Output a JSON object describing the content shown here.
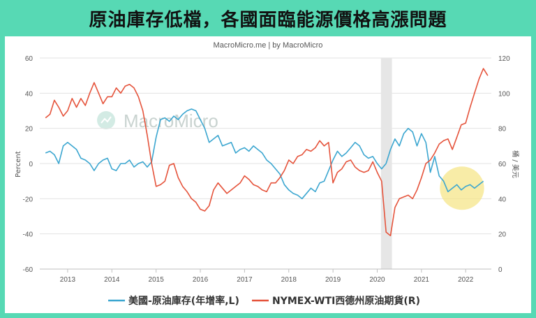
{
  "header": {
    "title": "原油庫存低檔，各國面臨能源價格高漲問題"
  },
  "credit": "MacroMicro.me | by MacroMicro",
  "watermark": "MacroMicro",
  "colors": {
    "frame": "#57d9b4",
    "inventory": "#3ba6d0",
    "wti": "#e5533b",
    "highlight": "#f6e68a",
    "shade": "#e6e6e6"
  },
  "chart_data": {
    "type": "line",
    "x_ticks": [
      "2013",
      "2014",
      "2015",
      "2016",
      "2017",
      "2018",
      "2019",
      "2020",
      "2021",
      "2022"
    ],
    "y_left": {
      "label": "Percent",
      "ticks": [
        60,
        40,
        20,
        0,
        -20,
        -40,
        -60
      ],
      "range": [
        -60,
        60
      ]
    },
    "y_right": {
      "label": "桶 / 美元",
      "ticks": [
        120,
        100,
        80,
        60,
        40,
        20,
        0
      ],
      "range": [
        0,
        120
      ]
    },
    "shaded_period": [
      "2020-02",
      "2020-05"
    ],
    "highlight_period": [
      "2021-06",
      "2022-06"
    ],
    "grid": true,
    "legend_position": "bottom",
    "series": [
      {
        "name": "美國-原油庫存(年增率,L)",
        "axis": "left",
        "points": [
          [
            2012.5,
            6
          ],
          [
            2012.6,
            7
          ],
          [
            2012.7,
            5
          ],
          [
            2012.8,
            0
          ],
          [
            2012.9,
            10
          ],
          [
            2013.0,
            12
          ],
          [
            2013.1,
            10
          ],
          [
            2013.2,
            8
          ],
          [
            2013.3,
            3
          ],
          [
            2013.4,
            2
          ],
          [
            2013.5,
            0
          ],
          [
            2013.6,
            -4
          ],
          [
            2013.7,
            0
          ],
          [
            2013.8,
            2
          ],
          [
            2013.9,
            3
          ],
          [
            2014.0,
            -3
          ],
          [
            2014.1,
            -4
          ],
          [
            2014.2,
            0
          ],
          [
            2014.3,
            0
          ],
          [
            2014.4,
            2
          ],
          [
            2014.5,
            -2
          ],
          [
            2014.6,
            0
          ],
          [
            2014.7,
            1
          ],
          [
            2014.8,
            -2
          ],
          [
            2014.9,
            1
          ],
          [
            2015.0,
            15
          ],
          [
            2015.1,
            25
          ],
          [
            2015.2,
            26
          ],
          [
            2015.3,
            24
          ],
          [
            2015.4,
            27
          ],
          [
            2015.5,
            25
          ],
          [
            2015.6,
            28
          ],
          [
            2015.7,
            30
          ],
          [
            2015.8,
            31
          ],
          [
            2015.9,
            30
          ],
          [
            2016.0,
            25
          ],
          [
            2016.1,
            20
          ],
          [
            2016.2,
            12
          ],
          [
            2016.3,
            14
          ],
          [
            2016.4,
            16
          ],
          [
            2016.5,
            10
          ],
          [
            2016.6,
            11
          ],
          [
            2016.7,
            12
          ],
          [
            2016.8,
            6
          ],
          [
            2016.9,
            8
          ],
          [
            2017.0,
            9
          ],
          [
            2017.1,
            7
          ],
          [
            2017.2,
            10
          ],
          [
            2017.3,
            8
          ],
          [
            2017.4,
            6
          ],
          [
            2017.5,
            2
          ],
          [
            2017.6,
            0
          ],
          [
            2017.7,
            -3
          ],
          [
            2017.8,
            -6
          ],
          [
            2017.9,
            -12
          ],
          [
            2018.0,
            -15
          ],
          [
            2018.1,
            -17
          ],
          [
            2018.2,
            -18
          ],
          [
            2018.3,
            -20
          ],
          [
            2018.4,
            -17
          ],
          [
            2018.5,
            -14
          ],
          [
            2018.6,
            -16
          ],
          [
            2018.7,
            -11
          ],
          [
            2018.8,
            -10
          ],
          [
            2018.9,
            -4
          ],
          [
            2019.0,
            2
          ],
          [
            2019.1,
            7
          ],
          [
            2019.2,
            4
          ],
          [
            2019.3,
            6
          ],
          [
            2019.4,
            9
          ],
          [
            2019.5,
            12
          ],
          [
            2019.6,
            10
          ],
          [
            2019.7,
            5
          ],
          [
            2019.8,
            3
          ],
          [
            2019.9,
            4
          ],
          [
            2020.0,
            0
          ],
          [
            2020.1,
            -3
          ],
          [
            2020.2,
            0
          ],
          [
            2020.3,
            8
          ],
          [
            2020.4,
            14
          ],
          [
            2020.5,
            10
          ],
          [
            2020.6,
            17
          ],
          [
            2020.7,
            20
          ],
          [
            2020.8,
            18
          ],
          [
            2020.9,
            10
          ],
          [
            2021.0,
            17
          ],
          [
            2021.1,
            12
          ],
          [
            2021.2,
            -5
          ],
          [
            2021.3,
            4
          ],
          [
            2021.4,
            -7
          ],
          [
            2021.5,
            -10
          ],
          [
            2021.6,
            -16
          ],
          [
            2021.7,
            -14
          ],
          [
            2021.8,
            -12
          ],
          [
            2021.9,
            -15
          ],
          [
            2022.0,
            -13
          ],
          [
            2022.1,
            -12
          ],
          [
            2022.2,
            -14
          ],
          [
            2022.3,
            -12
          ],
          [
            2022.4,
            -10
          ]
        ]
      },
      {
        "name": "NYMEX-WTI西德州原油期貨(R)",
        "axis": "right",
        "points": [
          [
            2012.5,
            86
          ],
          [
            2012.6,
            88
          ],
          [
            2012.7,
            96
          ],
          [
            2012.8,
            92
          ],
          [
            2012.9,
            87
          ],
          [
            2013.0,
            90
          ],
          [
            2013.1,
            97
          ],
          [
            2013.2,
            92
          ],
          [
            2013.3,
            97
          ],
          [
            2013.4,
            93
          ],
          [
            2013.5,
            100
          ],
          [
            2013.6,
            106
          ],
          [
            2013.7,
            100
          ],
          [
            2013.8,
            94
          ],
          [
            2013.9,
            98
          ],
          [
            2014.0,
            98
          ],
          [
            2014.1,
            103
          ],
          [
            2014.2,
            100
          ],
          [
            2014.3,
            104
          ],
          [
            2014.4,
            105
          ],
          [
            2014.5,
            103
          ],
          [
            2014.6,
            98
          ],
          [
            2014.7,
            90
          ],
          [
            2014.8,
            76
          ],
          [
            2014.9,
            60
          ],
          [
            2015.0,
            47
          ],
          [
            2015.1,
            48
          ],
          [
            2015.2,
            50
          ],
          [
            2015.3,
            59
          ],
          [
            2015.4,
            60
          ],
          [
            2015.5,
            52
          ],
          [
            2015.6,
            47
          ],
          [
            2015.7,
            44
          ],
          [
            2015.8,
            40
          ],
          [
            2015.9,
            38
          ],
          [
            2016.0,
            34
          ],
          [
            2016.1,
            33
          ],
          [
            2016.2,
            36
          ],
          [
            2016.3,
            45
          ],
          [
            2016.4,
            49
          ],
          [
            2016.5,
            46
          ],
          [
            2016.6,
            43
          ],
          [
            2016.7,
            45
          ],
          [
            2016.8,
            47
          ],
          [
            2016.9,
            49
          ],
          [
            2017.0,
            53
          ],
          [
            2017.1,
            51
          ],
          [
            2017.2,
            48
          ],
          [
            2017.3,
            47
          ],
          [
            2017.4,
            45
          ],
          [
            2017.5,
            44
          ],
          [
            2017.6,
            49
          ],
          [
            2017.7,
            49
          ],
          [
            2017.8,
            52
          ],
          [
            2017.9,
            56
          ],
          [
            2018.0,
            62
          ],
          [
            2018.1,
            60
          ],
          [
            2018.2,
            64
          ],
          [
            2018.3,
            65
          ],
          [
            2018.4,
            68
          ],
          [
            2018.5,
            67
          ],
          [
            2018.6,
            69
          ],
          [
            2018.7,
            73
          ],
          [
            2018.8,
            70
          ],
          [
            2018.9,
            72
          ],
          [
            2019.0,
            49
          ],
          [
            2019.1,
            55
          ],
          [
            2019.2,
            57
          ],
          [
            2019.3,
            61
          ],
          [
            2019.4,
            62
          ],
          [
            2019.5,
            58
          ],
          [
            2019.6,
            56
          ],
          [
            2019.7,
            55
          ],
          [
            2019.8,
            56
          ],
          [
            2019.9,
            61
          ],
          [
            2020.0,
            55
          ],
          [
            2020.1,
            50
          ],
          [
            2020.2,
            21
          ],
          [
            2020.3,
            19
          ],
          [
            2020.4,
            35
          ],
          [
            2020.5,
            40
          ],
          [
            2020.6,
            41
          ],
          [
            2020.7,
            42
          ],
          [
            2020.8,
            40
          ],
          [
            2020.9,
            45
          ],
          [
            2021.0,
            52
          ],
          [
            2021.1,
            60
          ],
          [
            2021.2,
            62
          ],
          [
            2021.3,
            66
          ],
          [
            2021.4,
            71
          ],
          [
            2021.5,
            73
          ],
          [
            2021.6,
            74
          ],
          [
            2021.7,
            68
          ],
          [
            2021.8,
            75
          ],
          [
            2021.9,
            82
          ],
          [
            2022.0,
            83
          ],
          [
            2022.1,
            92
          ],
          [
            2022.2,
            100
          ],
          [
            2022.3,
            108
          ],
          [
            2022.4,
            114
          ],
          [
            2022.5,
            110
          ]
        ]
      }
    ]
  }
}
